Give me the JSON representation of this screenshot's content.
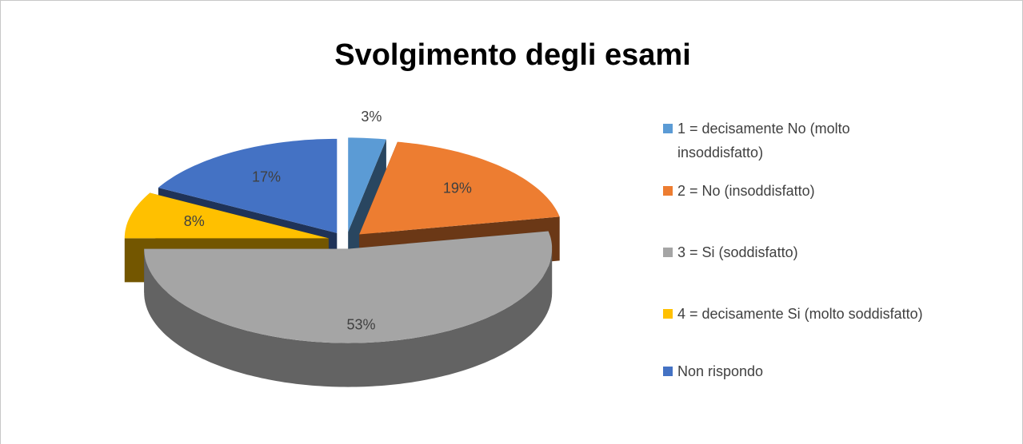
{
  "chart_data": {
    "type": "pie",
    "title": "Svolgimento degli esami",
    "categories": [
      "1 = decisamente No (molto insoddisfatto)",
      "2 = No (insoddisfatto)",
      "3 = Si (soddisfatto)",
      "4 = decisamente Si (molto soddisfatto)",
      "Non rispondo"
    ],
    "values": [
      3,
      19,
      53,
      8,
      17
    ],
    "value_labels": [
      "3%",
      "19%",
      "53%",
      "8%",
      "17%"
    ],
    "colors": [
      "#5b9bd5",
      "#ed7d31",
      "#a5a5a5",
      "#ffc000",
      "#4472c4"
    ],
    "legend": "right",
    "exploded": true,
    "three_d": true
  }
}
